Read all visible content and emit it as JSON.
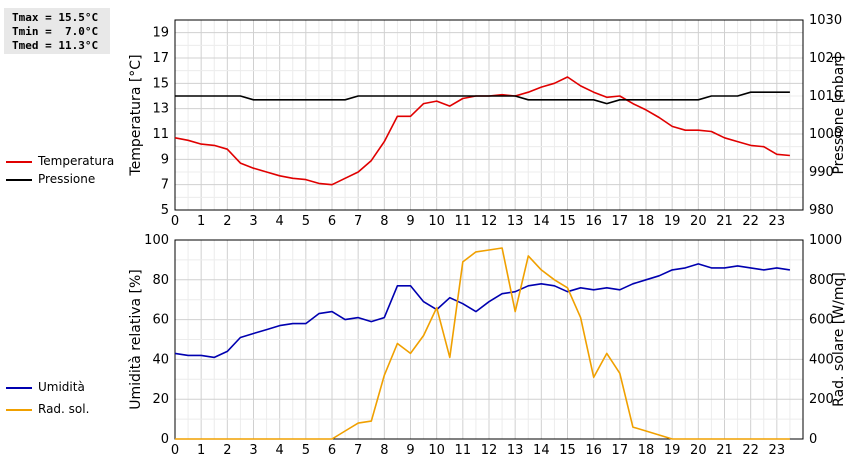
{
  "stats": {
    "tmax": "Tmax = 15.5°C",
    "tmin": "Tmin =  7.0°C",
    "tmed": "Tmed = 11.3°C"
  },
  "legend_top": [
    {
      "label": "Temperatura",
      "color": "#e00000"
    },
    {
      "label": "Pressione",
      "color": "#000000"
    }
  ],
  "legend_bottom": [
    {
      "label": "Umidità",
      "color": "#0000b0"
    },
    {
      "label": "Rad. sol.",
      "color": "#f0a000"
    }
  ],
  "chart_data": [
    {
      "type": "line",
      "xlim": [
        0,
        24
      ],
      "x_ticks": [
        0,
        1,
        2,
        3,
        4,
        5,
        6,
        7,
        8,
        9,
        10,
        11,
        12,
        13,
        14,
        15,
        16,
        17,
        18,
        19,
        20,
        21,
        22,
        23
      ],
      "ylabel_left": "Temperatura [°C]",
      "ylabel_right": "Pressione [mbar]",
      "ylim_left": [
        5,
        20
      ],
      "y_ticks_left": [
        5,
        7,
        9,
        11,
        13,
        15,
        17,
        19
      ],
      "ylim_right": [
        980,
        1030
      ],
      "y_ticks_right": [
        980,
        990,
        1000,
        1010,
        1020,
        1030
      ],
      "grid": true,
      "series": [
        {
          "name": "Temperatura",
          "axis": "left",
          "color": "#e00000",
          "x": [
            0,
            0.5,
            1,
            1.5,
            2,
            2.5,
            3,
            3.5,
            4,
            4.5,
            5,
            5.5,
            6,
            6.5,
            7,
            7.5,
            8,
            8.5,
            9,
            9.5,
            10,
            10.5,
            11,
            11.5,
            12,
            12.5,
            13,
            13.5,
            14,
            14.5,
            15,
            15.5,
            16,
            16.5,
            17,
            17.5,
            18,
            18.5,
            19,
            19.5,
            20,
            20.5,
            21,
            21.5,
            22,
            22.5,
            23,
            23.5
          ],
          "values": [
            10.7,
            10.5,
            10.2,
            10.1,
            9.8,
            8.7,
            8.3,
            8.0,
            7.7,
            7.5,
            7.4,
            7.1,
            7.0,
            7.5,
            8.0,
            8.9,
            10.4,
            12.4,
            12.4,
            13.4,
            13.6,
            13.2,
            13.8,
            14.0,
            14.0,
            14.1,
            14.0,
            14.3,
            14.7,
            15.0,
            15.5,
            14.8,
            14.3,
            13.9,
            14.0,
            13.4,
            12.9,
            12.3,
            11.6,
            11.3,
            11.3,
            11.2,
            10.7,
            10.4,
            10.1,
            10.0,
            9.4,
            9.3
          ]
        },
        {
          "name": "Pressione",
          "axis": "right",
          "color": "#000000",
          "x": [
            0,
            0.5,
            1,
            1.5,
            2,
            2.5,
            3,
            3.5,
            4,
            4.5,
            5,
            5.5,
            6,
            6.5,
            7,
            7.5,
            8,
            8.5,
            9,
            9.5,
            10,
            10.5,
            11,
            11.5,
            12,
            12.5,
            13,
            13.5,
            14,
            14.5,
            15,
            15.5,
            16,
            16.5,
            17,
            17.5,
            18,
            18.5,
            19,
            19.5,
            20,
            20.5,
            21,
            21.5,
            22,
            22.5,
            23,
            23.5
          ],
          "values": [
            1010,
            1010,
            1010,
            1010,
            1010,
            1010,
            1009,
            1009,
            1009,
            1009,
            1009,
            1009,
            1009,
            1009,
            1010,
            1010,
            1010,
            1010,
            1010,
            1010,
            1010,
            1010,
            1010,
            1010,
            1010,
            1010,
            1010,
            1009,
            1009,
            1009,
            1009,
            1009,
            1009,
            1008,
            1009,
            1009,
            1009,
            1009,
            1009,
            1009,
            1009,
            1010,
            1010,
            1010,
            1011,
            1011,
            1011,
            1011
          ]
        }
      ]
    },
    {
      "type": "line",
      "xlim": [
        0,
        24
      ],
      "x_ticks": [
        0,
        1,
        2,
        3,
        4,
        5,
        6,
        7,
        8,
        9,
        10,
        11,
        12,
        13,
        14,
        15,
        16,
        17,
        18,
        19,
        20,
        21,
        22,
        23
      ],
      "ylabel_left": "Umidità relativa [%]",
      "ylabel_right": "Rad. solare [W/mq]",
      "ylim_left": [
        0,
        100
      ],
      "y_ticks_left": [
        0,
        20,
        40,
        60,
        80,
        100
      ],
      "ylim_right": [
        0,
        1000
      ],
      "y_ticks_right": [
        0,
        200,
        400,
        600,
        800,
        1000
      ],
      "grid": true,
      "series": [
        {
          "name": "Umidità",
          "axis": "left",
          "color": "#0000b0",
          "x": [
            0,
            0.5,
            1,
            1.5,
            2,
            2.5,
            3,
            3.5,
            4,
            4.5,
            5,
            5.5,
            6,
            6.5,
            7,
            7.5,
            8,
            8.5,
            9,
            9.5,
            10,
            10.5,
            11,
            11.5,
            12,
            12.5,
            13,
            13.5,
            14,
            14.5,
            15,
            15.5,
            16,
            16.5,
            17,
            17.5,
            18,
            18.5,
            19,
            19.5,
            20,
            20.5,
            21,
            21.5,
            22,
            22.5,
            23,
            23.5
          ],
          "values": [
            43,
            42,
            42,
            41,
            44,
            51,
            53,
            55,
            57,
            58,
            58,
            63,
            64,
            60,
            61,
            59,
            61,
            77,
            77,
            69,
            65,
            71,
            68,
            64,
            69,
            73,
            74,
            77,
            78,
            77,
            74,
            76,
            75,
            76,
            75,
            78,
            80,
            82,
            85,
            86,
            88,
            86,
            86,
            87,
            86,
            85,
            86,
            85
          ]
        },
        {
          "name": "Rad. sol.",
          "axis": "right",
          "color": "#f0a000",
          "x": [
            0,
            0.5,
            1,
            1.5,
            2,
            2.5,
            3,
            3.5,
            4,
            4.5,
            5,
            5.5,
            6,
            6.5,
            7,
            7.5,
            8,
            8.5,
            9,
            9.5,
            10,
            10.5,
            11,
            11.5,
            12,
            12.5,
            13,
            13.5,
            14,
            14.5,
            15,
            15.5,
            16,
            16.5,
            17,
            17.5,
            18,
            18.5,
            19,
            19.5,
            20,
            20.5,
            21,
            21.5,
            22,
            22.5,
            23,
            23.5
          ],
          "values": [
            0,
            0,
            0,
            0,
            0,
            0,
            0,
            0,
            0,
            0,
            0,
            0,
            0,
            40,
            80,
            90,
            320,
            480,
            430,
            520,
            660,
            410,
            890,
            940,
            950,
            960,
            640,
            920,
            850,
            800,
            760,
            610,
            310,
            430,
            330,
            60,
            40,
            20,
            0,
            0,
            0,
            0,
            0,
            0,
            0,
            0,
            0,
            0
          ]
        }
      ]
    }
  ]
}
